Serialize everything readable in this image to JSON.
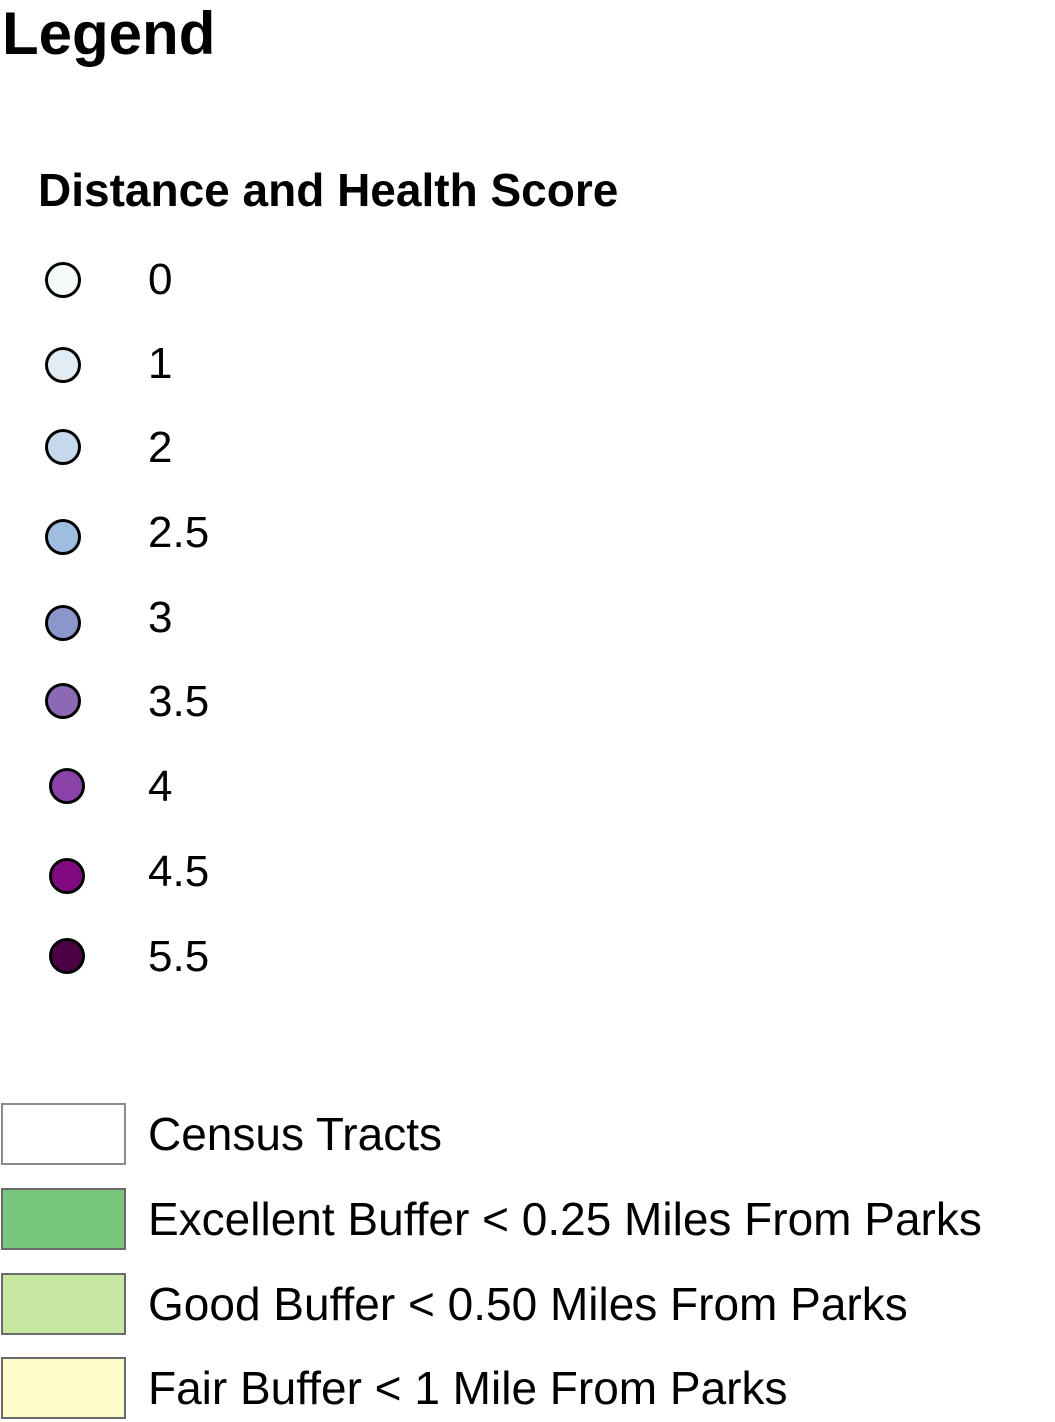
{
  "legend": {
    "title": "Legend",
    "section_title": "Distance and Health Score",
    "scores": [
      {
        "label": "0",
        "color": "#f4fafa"
      },
      {
        "label": "1",
        "color": "#e2ecf4"
      },
      {
        "label": "2",
        "color": "#c6d8eb"
      },
      {
        "label": "2.5",
        "color": "#9fbde0"
      },
      {
        "label": "3",
        "color": "#8b96ca"
      },
      {
        "label": "3.5",
        "color": "#8b69b3"
      },
      {
        "label": "4",
        "color": "#8a42a8"
      },
      {
        "label": "4.5",
        "color": "#800b80"
      },
      {
        "label": "5.5",
        "color": "#4a0245"
      }
    ],
    "areas": [
      {
        "label": "Census Tracts",
        "color": "#ffffff"
      },
      {
        "label": "Excellent Buffer < 0.25 Miles From Parks",
        "color": "#79c77c"
      },
      {
        "label": "Good Buffer < 0.50 Miles From Parks",
        "color": "#c6e7a2"
      },
      {
        "label": "Fair Buffer < 1 Mile From Parks",
        "color": "#fffccb"
      }
    ]
  }
}
